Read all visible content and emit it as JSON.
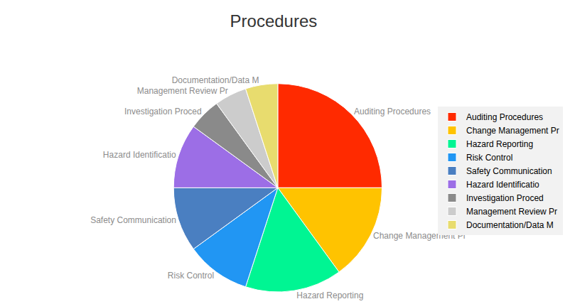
{
  "chart_data": {
    "type": "pie",
    "title": "Procedures",
    "categories": [
      "Auditing Procedures",
      "Change Management Pr",
      "Hazard Reporting",
      "Risk Control",
      "Safety Communication",
      "Hazard Identificatio",
      "Investigation Proced",
      "Management Review Pr",
      "Documentation/Data M"
    ],
    "values": [
      25,
      15,
      15,
      10,
      10,
      10,
      5,
      5,
      5
    ],
    "colors": [
      "#ff2a00",
      "#ffc300",
      "#00f593",
      "#2196f3",
      "#4a7fc1",
      "#9c6ee6",
      "#8a8a8a",
      "#cccccc",
      "#e8dc6e"
    ],
    "legend": "right"
  }
}
